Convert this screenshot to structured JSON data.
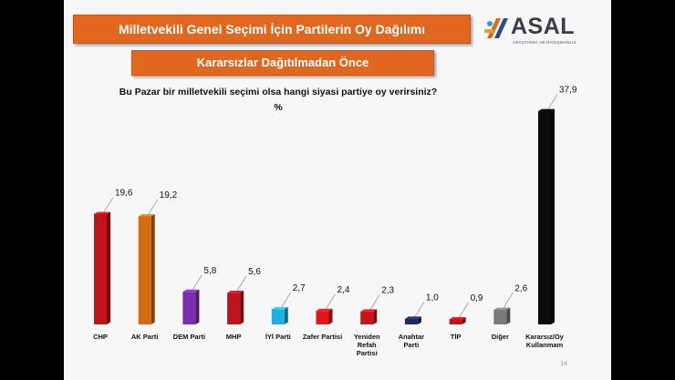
{
  "header": {
    "title": "Milletvekili Genel Seçimi İçin Partilerin Oy Dağılımı",
    "subtitle": "Kararsızlar Dağıtılmadan Önce"
  },
  "logo": {
    "name": "ASAL",
    "tagline": "ARAŞTIRMA VE DANIŞMANLIK"
  },
  "question": "Bu Pazar bir milletvekili seçimi olsa hangi siyasi partiye oy verirsiniz?",
  "unit": "%",
  "page_number": "14",
  "chart_data": {
    "type": "bar",
    "title": "",
    "xlabel": "",
    "ylabel": "",
    "ylim": [
      0,
      40
    ],
    "grid": false,
    "categories": [
      "CHP",
      "AK Parti",
      "DEM Parti",
      "MHP",
      "İYİ Parti",
      "Zafer Partisi",
      "Yeniden Refah Partisi",
      "Anahtar Parti",
      "TİP",
      "Diğer",
      "Kararsız/Oy Kullanmam"
    ],
    "values": [
      19.6,
      19.2,
      5.8,
      5.6,
      2.7,
      2.4,
      2.3,
      1.0,
      0.9,
      2.6,
      37.9
    ],
    "value_labels": [
      "19,6",
      "19,2",
      "5,8",
      "5,6",
      "2,7",
      "2,4",
      "2,3",
      "1,0",
      "0,9",
      "2,6",
      "37,9"
    ],
    "colors": [
      "#c0141c",
      "#d36c12",
      "#7a2fb0",
      "#c0141c",
      "#1faee0",
      "#e0161c",
      "#c4161c",
      "#1a2a5a",
      "#c0141c",
      "#7a7a7a",
      "#0c0c0c"
    ]
  }
}
